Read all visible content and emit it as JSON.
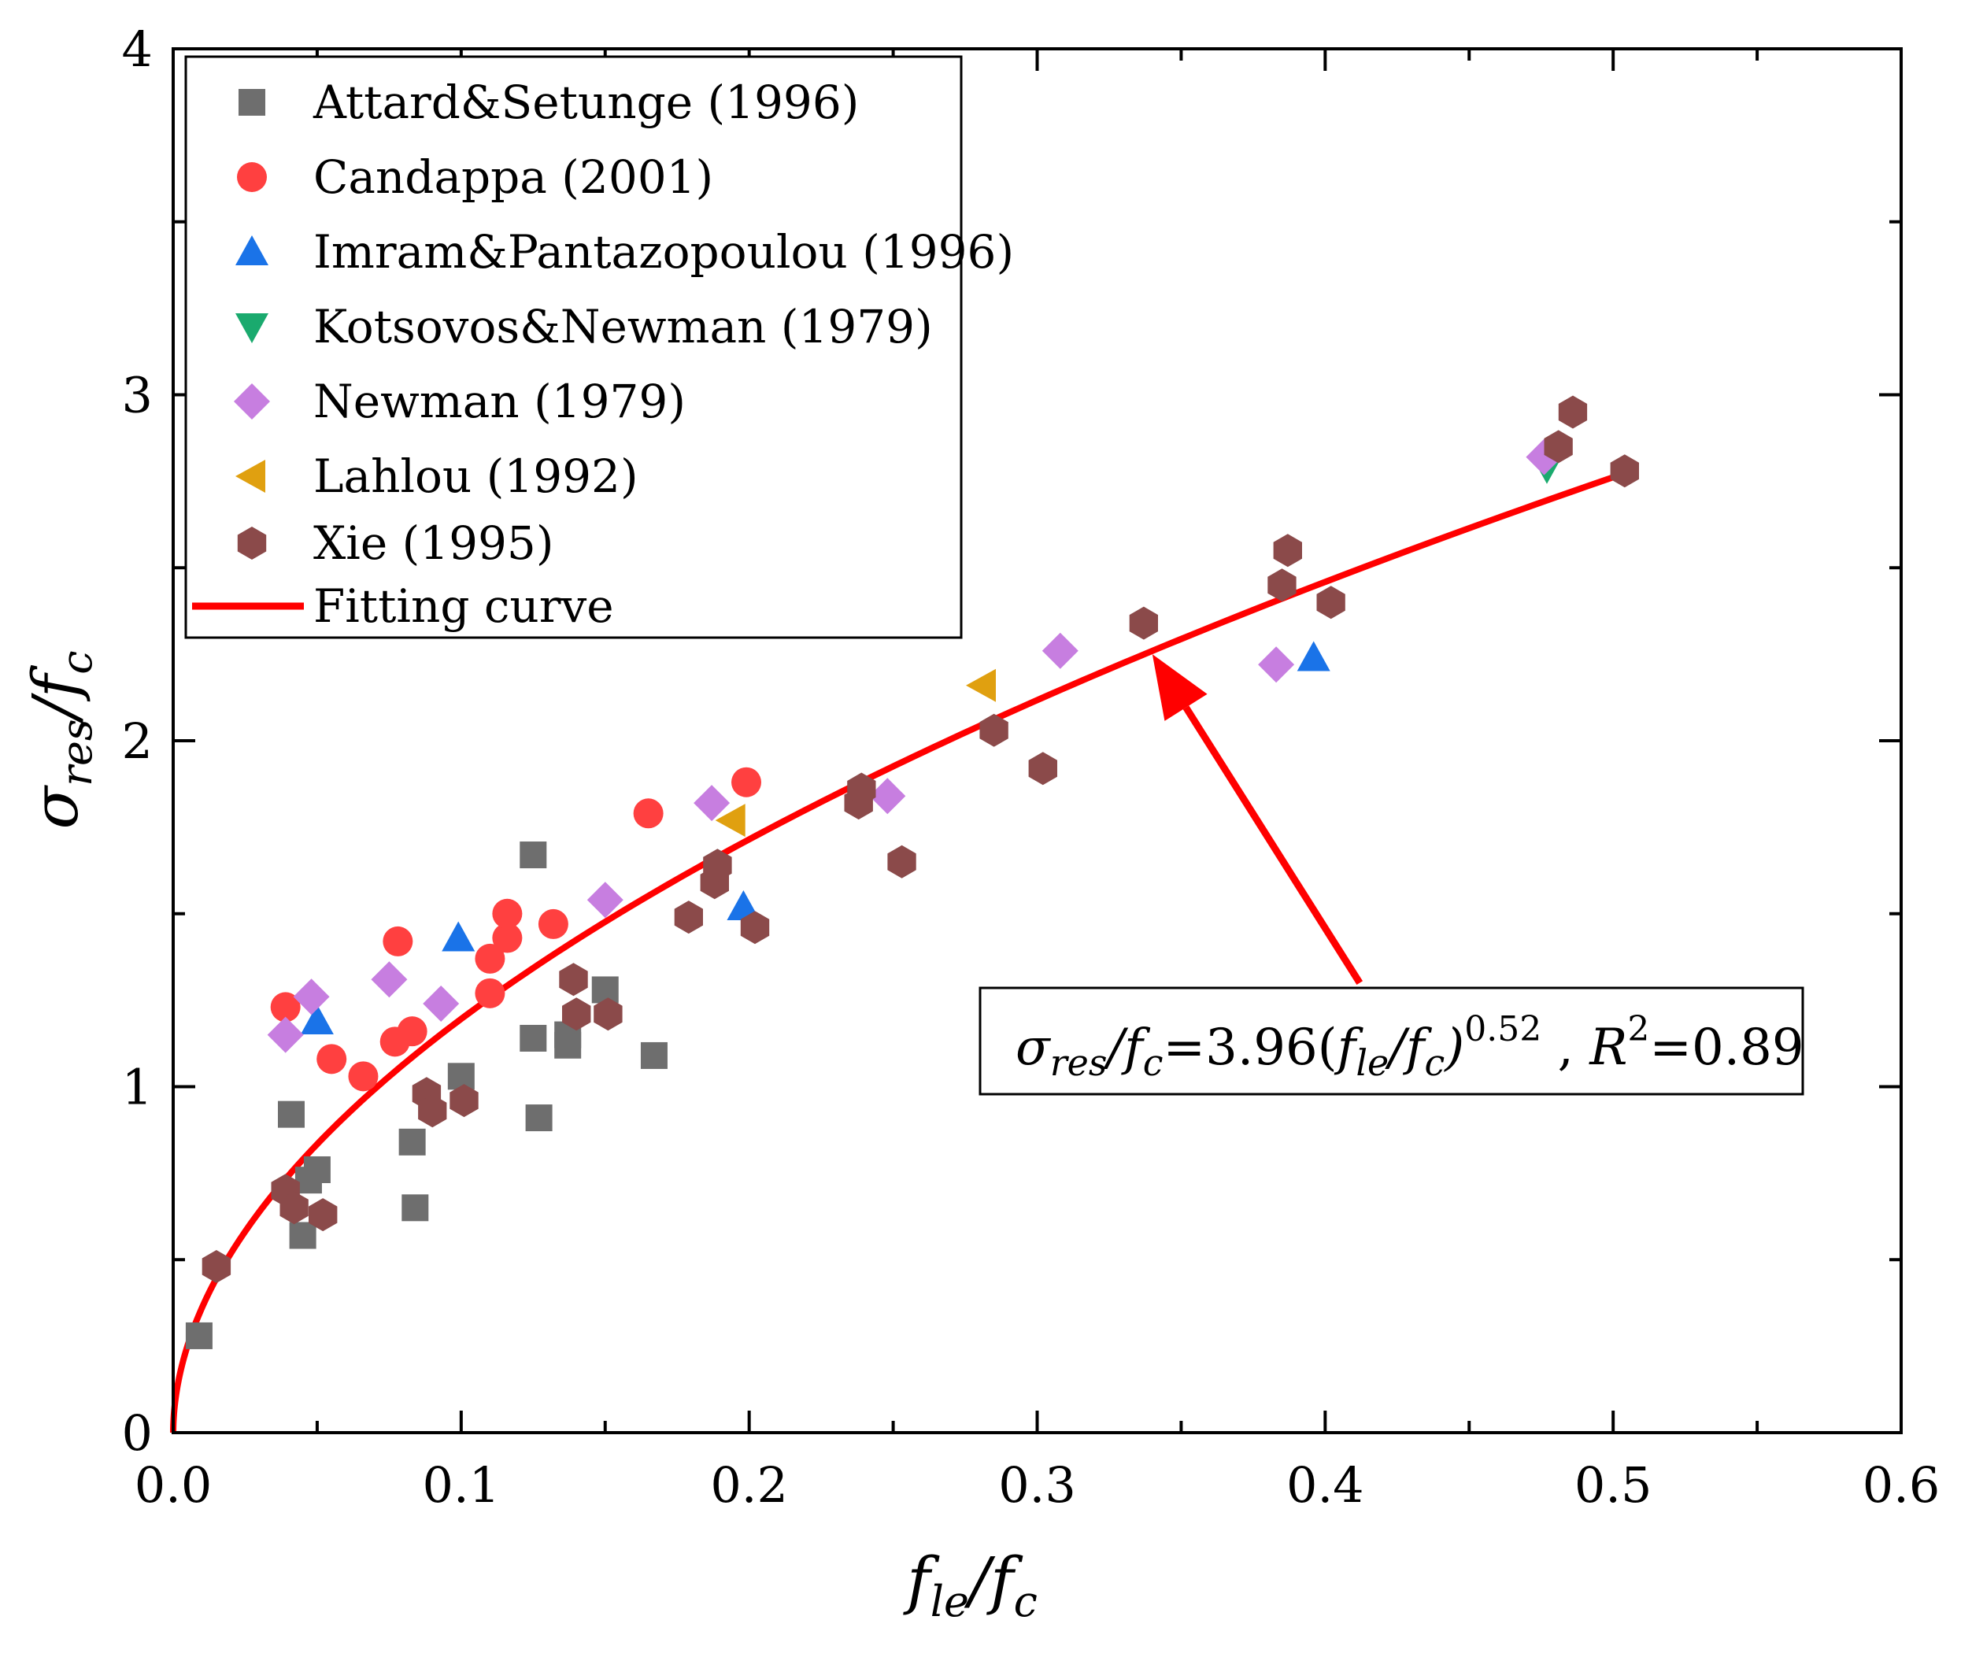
{
  "chart_data": {
    "type": "scatter",
    "title": "",
    "xlabel": "f_le/f_c",
    "ylabel": "σ_res/f_c",
    "xlabel_parts": {
      "f1": "f",
      "sub1": "le",
      "slash": "/",
      "f2": "f",
      "sub2": "c"
    },
    "ylabel_parts": {
      "sigma": "σ",
      "sub1": "res",
      "slash": "/",
      "f": "f",
      "sub2": "c"
    },
    "xlim": [
      0.0,
      0.6
    ],
    "ylim": [
      0,
      4
    ],
    "x_ticks": [
      "0.0",
      "0.1",
      "0.2",
      "0.3",
      "0.4",
      "0.5",
      "0.6"
    ],
    "y_ticks": [
      "0",
      "1",
      "2",
      "3",
      "4"
    ],
    "legend_position": "top-left",
    "series": [
      {
        "name": "Attard&Setunge (1996)",
        "marker": "square",
        "color": "#6e6e6e",
        "points": [
          [
            0.009,
            0.28
          ],
          [
            0.041,
            0.92
          ],
          [
            0.045,
            0.57
          ],
          [
            0.047,
            0.73
          ],
          [
            0.05,
            0.76
          ],
          [
            0.083,
            0.84
          ],
          [
            0.084,
            0.65
          ],
          [
            0.1,
            1.03
          ],
          [
            0.125,
            1.14
          ],
          [
            0.125,
            1.67
          ],
          [
            0.127,
            0.91
          ],
          [
            0.137,
            1.12
          ],
          [
            0.137,
            1.15
          ],
          [
            0.15,
            1.28
          ],
          [
            0.167,
            1.09
          ]
        ]
      },
      {
        "name": "Candappa (2001)",
        "marker": "circle",
        "color": "#ff4040",
        "points": [
          [
            0.039,
            1.23
          ],
          [
            0.055,
            1.08
          ],
          [
            0.066,
            1.03
          ],
          [
            0.077,
            1.13
          ],
          [
            0.078,
            1.42
          ],
          [
            0.083,
            1.16
          ],
          [
            0.11,
            1.27
          ],
          [
            0.11,
            1.37
          ],
          [
            0.116,
            1.43
          ],
          [
            0.116,
            1.5
          ],
          [
            0.132,
            1.47
          ],
          [
            0.165,
            1.79
          ],
          [
            0.199,
            1.88
          ]
        ]
      },
      {
        "name": "Imram&Pantazopoulou (1996)",
        "marker": "triangle-up",
        "color": "#1a73e8",
        "points": [
          [
            0.05,
            1.19
          ],
          [
            0.099,
            1.43
          ],
          [
            0.198,
            1.52
          ],
          [
            0.396,
            2.24
          ]
        ]
      },
      {
        "name": "Kotsovos&Newman (1979)",
        "marker": "triangle-down",
        "color": "#1aaa6e",
        "points": [
          [
            0.477,
            2.79
          ]
        ]
      },
      {
        "name": "Newman (1979)",
        "marker": "diamond",
        "color": "#c77ee0",
        "points": [
          [
            0.039,
            1.15
          ],
          [
            0.048,
            1.26
          ],
          [
            0.075,
            1.31
          ],
          [
            0.093,
            1.24
          ],
          [
            0.15,
            1.54
          ],
          [
            0.187,
            1.82
          ],
          [
            0.248,
            1.84
          ],
          [
            0.308,
            2.26
          ],
          [
            0.383,
            2.22
          ],
          [
            0.476,
            2.82
          ]
        ]
      },
      {
        "name": "Lahlou (1992)",
        "marker": "triangle-left",
        "color": "#e0a010",
        "points": [
          [
            0.194,
            1.77
          ],
          [
            0.281,
            2.16
          ]
        ]
      },
      {
        "name": "Xie (1995)",
        "marker": "hexagon",
        "color": "#8b4a4a",
        "points": [
          [
            0.015,
            0.48
          ],
          [
            0.039,
            0.7
          ],
          [
            0.042,
            0.65
          ],
          [
            0.052,
            0.63
          ],
          [
            0.088,
            0.98
          ],
          [
            0.09,
            0.93
          ],
          [
            0.101,
            0.96
          ],
          [
            0.139,
            1.31
          ],
          [
            0.14,
            1.21
          ],
          [
            0.151,
            1.21
          ],
          [
            0.179,
            1.49
          ],
          [
            0.188,
            1.59
          ],
          [
            0.189,
            1.64
          ],
          [
            0.202,
            1.46
          ],
          [
            0.238,
            1.82
          ],
          [
            0.239,
            1.86
          ],
          [
            0.253,
            1.65
          ],
          [
            0.285,
            2.03
          ],
          [
            0.302,
            1.92
          ],
          [
            0.337,
            2.34
          ],
          [
            0.385,
            2.45
          ],
          [
            0.387,
            2.55
          ],
          [
            0.402,
            2.4
          ],
          [
            0.481,
            2.85
          ],
          [
            0.486,
            2.95
          ],
          [
            0.504,
            2.78
          ]
        ]
      }
    ],
    "fit": {
      "name": "Fitting curve",
      "color": "#ff0000",
      "coefficient": 3.96,
      "exponent": 0.52,
      "x_range": [
        0.0,
        0.505
      ]
    },
    "annotation": {
      "sigma": "σ",
      "sub_res": "res",
      "slash": "/",
      "f": "f",
      "sub_c": "c",
      "eq": "=3.96(",
      "sub_le": "le",
      "close": ")",
      "exp": "0.52",
      "comma": " , ",
      "R": "R",
      "sq": "2",
      "r2": "=0.89",
      "arrow_tip": [
        0.34,
        2.25
      ],
      "arrow_tail": [
        0.412,
        1.3
      ]
    }
  }
}
